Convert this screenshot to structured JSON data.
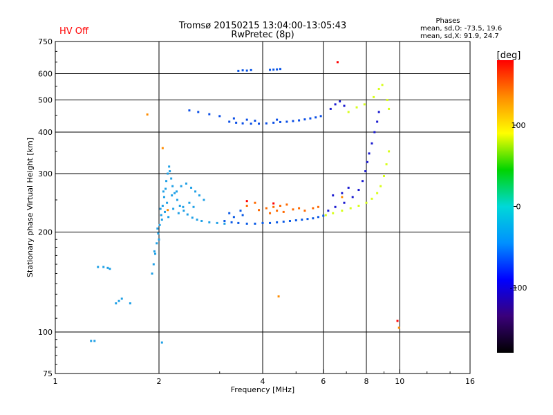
{
  "header": {
    "title": "Tromsø 20150215 13:04:00-13:05:43",
    "subtitle": "RwPretec (8p)",
    "hv_status": "HV Off",
    "hv_color": "#ff0000",
    "phase_title": "Phases",
    "phase_o": "mean, sd,O: -73.5, 19.6",
    "phase_x": "mean, sd,X:  91.9, 24.7"
  },
  "chart_data": {
    "type": "scatter",
    "xlabel": "Frequency [MHz]",
    "ylabel": "Stationary phase Virtual Height [km]",
    "x_scale": "log",
    "y_scale": "log",
    "xlim": [
      1,
      16
    ],
    "ylim": [
      75,
      750
    ],
    "x_ticks": [
      1,
      2,
      4,
      6,
      8,
      10,
      16
    ],
    "y_ticks": [
      75,
      100,
      200,
      300,
      400,
      500,
      600,
      750
    ],
    "x_gridlines": [
      2,
      4,
      6,
      8,
      10
    ],
    "y_gridlines": [
      100,
      200,
      300,
      400,
      500,
      600
    ],
    "grid": true,
    "colorbar": {
      "label": "[deg]",
      "range": [
        -180,
        180
      ],
      "ticks": [
        100,
        0,
        -100
      ],
      "colors": [
        "#000000",
        "#3a007a",
        "#0000ff",
        "#0090ff",
        "#00d8d8",
        "#00d400",
        "#ffff00",
        "#ff8c00",
        "#ff0000"
      ]
    },
    "series": [
      {
        "color": "#1fa0e6",
        "points": [
          [
            1.33,
            157
          ],
          [
            1.38,
            157
          ],
          [
            1.42,
            156
          ],
          [
            1.44,
            155
          ],
          [
            1.5,
            122
          ],
          [
            1.53,
            124
          ],
          [
            1.56,
            126
          ],
          [
            1.65,
            122
          ],
          [
            1.27,
            94
          ],
          [
            1.3,
            94
          ],
          [
            2.04,
            93
          ]
        ]
      },
      {
        "color": "#1fa0e6",
        "points": [
          [
            1.91,
            150
          ],
          [
            1.93,
            160
          ],
          [
            1.95,
            172
          ],
          [
            1.97,
            185
          ],
          [
            1.99,
            198
          ],
          [
            2.01,
            210
          ],
          [
            2.03,
            225
          ],
          [
            2.05,
            240
          ],
          [
            2.07,
            255
          ],
          [
            2.09,
            270
          ],
          [
            2.1,
            285
          ],
          [
            2.12,
            300
          ],
          [
            2.14,
            315
          ],
          [
            2.15,
            305
          ],
          [
            2.17,
            290
          ],
          [
            2.19,
            275
          ],
          [
            2.22,
            262
          ],
          [
            2.26,
            250
          ],
          [
            2.3,
            240
          ],
          [
            2.36,
            232
          ],
          [
            2.42,
            226
          ],
          [
            2.5,
            221
          ],
          [
            2.58,
            218
          ],
          [
            2.66,
            216
          ],
          [
            2.8,
            214
          ],
          [
            2.95,
            213
          ],
          [
            3.1,
            212
          ],
          [
            1.94,
            175
          ],
          [
            1.98,
            205
          ],
          [
            2.02,
            235
          ],
          [
            2.06,
            265
          ],
          [
            2.11,
            245
          ],
          [
            2.18,
            258
          ],
          [
            2.25,
            265
          ],
          [
            2.32,
            275
          ],
          [
            2.4,
            280
          ],
          [
            2.48,
            272
          ],
          [
            2.55,
            265
          ],
          [
            2.62,
            258
          ],
          [
            2.7,
            250
          ],
          [
            2.0,
            190
          ],
          [
            2.04,
            218
          ],
          [
            2.08,
            230
          ],
          [
            2.13,
            222
          ],
          [
            2.2,
            235
          ],
          [
            2.28,
            228
          ],
          [
            2.35,
            238
          ],
          [
            2.45,
            245
          ],
          [
            2.52,
            238
          ]
        ]
      },
      {
        "color": "#0a5ae6",
        "points": [
          [
            3.1,
            216
          ],
          [
            3.25,
            214
          ],
          [
            3.4,
            213
          ],
          [
            3.6,
            212
          ],
          [
            3.8,
            212
          ],
          [
            4.0,
            213
          ],
          [
            4.2,
            213
          ],
          [
            4.4,
            214
          ],
          [
            4.6,
            215
          ],
          [
            4.8,
            216
          ],
          [
            5.0,
            217
          ],
          [
            5.2,
            218
          ],
          [
            5.4,
            219
          ],
          [
            5.6,
            220
          ],
          [
            5.8,
            222
          ],
          [
            6.0,
            224
          ],
          [
            3.3,
            222
          ],
          [
            3.5,
            225
          ],
          [
            3.2,
            228
          ],
          [
            3.45,
            232
          ]
        ]
      },
      {
        "color": "#ff6a00",
        "points": [
          [
            3.6,
            240
          ],
          [
            3.9,
            233
          ],
          [
            4.1,
            236
          ],
          [
            4.3,
            238
          ],
          [
            4.5,
            240
          ],
          [
            4.7,
            242
          ],
          [
            4.4,
            232
          ],
          [
            4.6,
            230
          ],
          [
            4.9,
            234
          ],
          [
            5.1,
            236
          ],
          [
            5.3,
            232
          ],
          [
            5.6,
            236
          ],
          [
            5.8,
            238
          ],
          [
            4.2,
            228
          ],
          [
            3.8,
            245
          ]
        ]
      },
      {
        "color": "#0a4ee6",
        "points": [
          [
            3.2,
            430
          ],
          [
            3.35,
            427
          ],
          [
            3.5,
            425
          ],
          [
            3.7,
            424
          ],
          [
            3.9,
            424
          ],
          [
            4.1,
            425
          ],
          [
            4.3,
            427
          ],
          [
            4.5,
            429
          ],
          [
            4.7,
            430
          ],
          [
            4.9,
            432
          ],
          [
            5.1,
            434
          ],
          [
            5.3,
            437
          ],
          [
            5.5,
            440
          ],
          [
            5.7,
            443
          ],
          [
            5.9,
            447
          ],
          [
            3.3,
            440
          ],
          [
            3.6,
            436
          ],
          [
            3.8,
            433
          ],
          [
            4.4,
            436
          ],
          [
            2.45,
            465
          ],
          [
            2.6,
            460
          ],
          [
            2.8,
            453
          ],
          [
            3.0,
            447
          ]
        ]
      },
      {
        "color": "#0a55e6",
        "points": [
          [
            3.4,
            612
          ],
          [
            3.5,
            614
          ],
          [
            3.6,
            613
          ],
          [
            3.7,
            615
          ],
          [
            4.2,
            616
          ],
          [
            4.3,
            617
          ],
          [
            4.4,
            618
          ],
          [
            4.5,
            620
          ]
        ]
      },
      {
        "color": "#1a1ad0",
        "points": [
          [
            6.2,
            232
          ],
          [
            6.5,
            238
          ],
          [
            6.9,
            245
          ],
          [
            7.3,
            255
          ],
          [
            7.6,
            268
          ],
          [
            7.8,
            285
          ],
          [
            7.95,
            305
          ],
          [
            8.05,
            325
          ],
          [
            8.15,
            345
          ],
          [
            8.3,
            370
          ],
          [
            8.45,
            400
          ],
          [
            8.6,
            430
          ],
          [
            8.7,
            460
          ],
          [
            6.4,
            258
          ],
          [
            6.8,
            262
          ],
          [
            7.1,
            272
          ],
          [
            6.3,
            470
          ],
          [
            6.5,
            485
          ],
          [
            6.7,
            495
          ],
          [
            6.9,
            480
          ]
        ]
      },
      {
        "color": "#d8ff1a",
        "points": [
          [
            6.1,
            225
          ],
          [
            6.4,
            228
          ],
          [
            6.8,
            232
          ],
          [
            7.2,
            236
          ],
          [
            7.6,
            240
          ],
          [
            8.0,
            245
          ],
          [
            8.3,
            252
          ],
          [
            8.6,
            262
          ],
          [
            8.8,
            275
          ],
          [
            9.0,
            295
          ],
          [
            9.15,
            320
          ],
          [
            9.3,
            350
          ],
          [
            7.1,
            460
          ],
          [
            7.5,
            475
          ],
          [
            7.9,
            485
          ],
          [
            8.4,
            510
          ],
          [
            8.7,
            540
          ],
          [
            8.9,
            555
          ],
          [
            9.2,
            500
          ],
          [
            9.3,
            470
          ]
        ]
      },
      {
        "color": "#ff0000",
        "points": [
          [
            6.6,
            650
          ],
          [
            3.6,
            248
          ],
          [
            4.3,
            244
          ],
          [
            9.85,
            108
          ]
        ]
      },
      {
        "color": "#ff8c00",
        "points": [
          [
            1.85,
            452
          ],
          [
            2.05,
            358
          ],
          [
            2.12,
            233
          ],
          [
            4.45,
            128
          ],
          [
            9.95,
            103
          ],
          [
            6.8,
            255
          ]
        ]
      }
    ]
  }
}
